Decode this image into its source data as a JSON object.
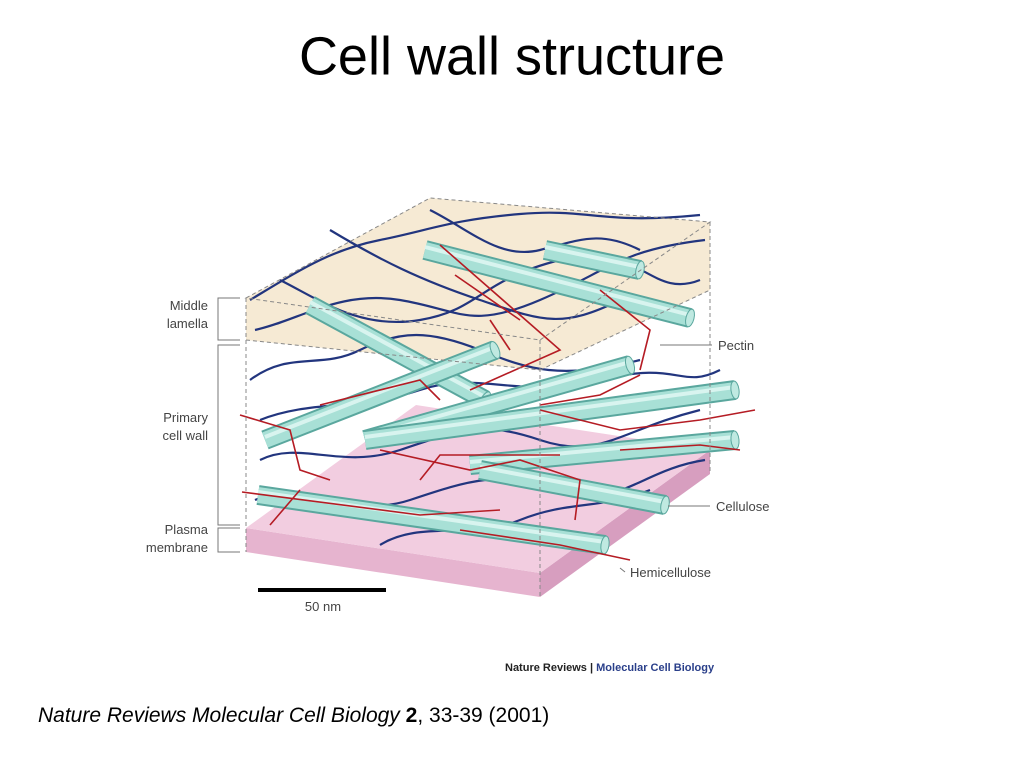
{
  "title": "Cell wall structure",
  "labels": {
    "middle_lamella": [
      "Middle",
      "lamella"
    ],
    "primary_cell_wall": [
      "Primary",
      "cell wall"
    ],
    "plasma_membrane": [
      "Plasma",
      "membrane"
    ],
    "pectin": "Pectin",
    "cellulose": "Cellulose",
    "hemicellulose": "Hemicellulose"
  },
  "scale_bar": "50 nm",
  "credit": {
    "publisher": "Nature Reviews",
    "separator": "|",
    "journal": "Molecular Cell Biology"
  },
  "citation": {
    "journal": "Nature Reviews Molecular Cell Biology",
    "volume": "2",
    "pages": ", 33-39 (2001)"
  }
}
